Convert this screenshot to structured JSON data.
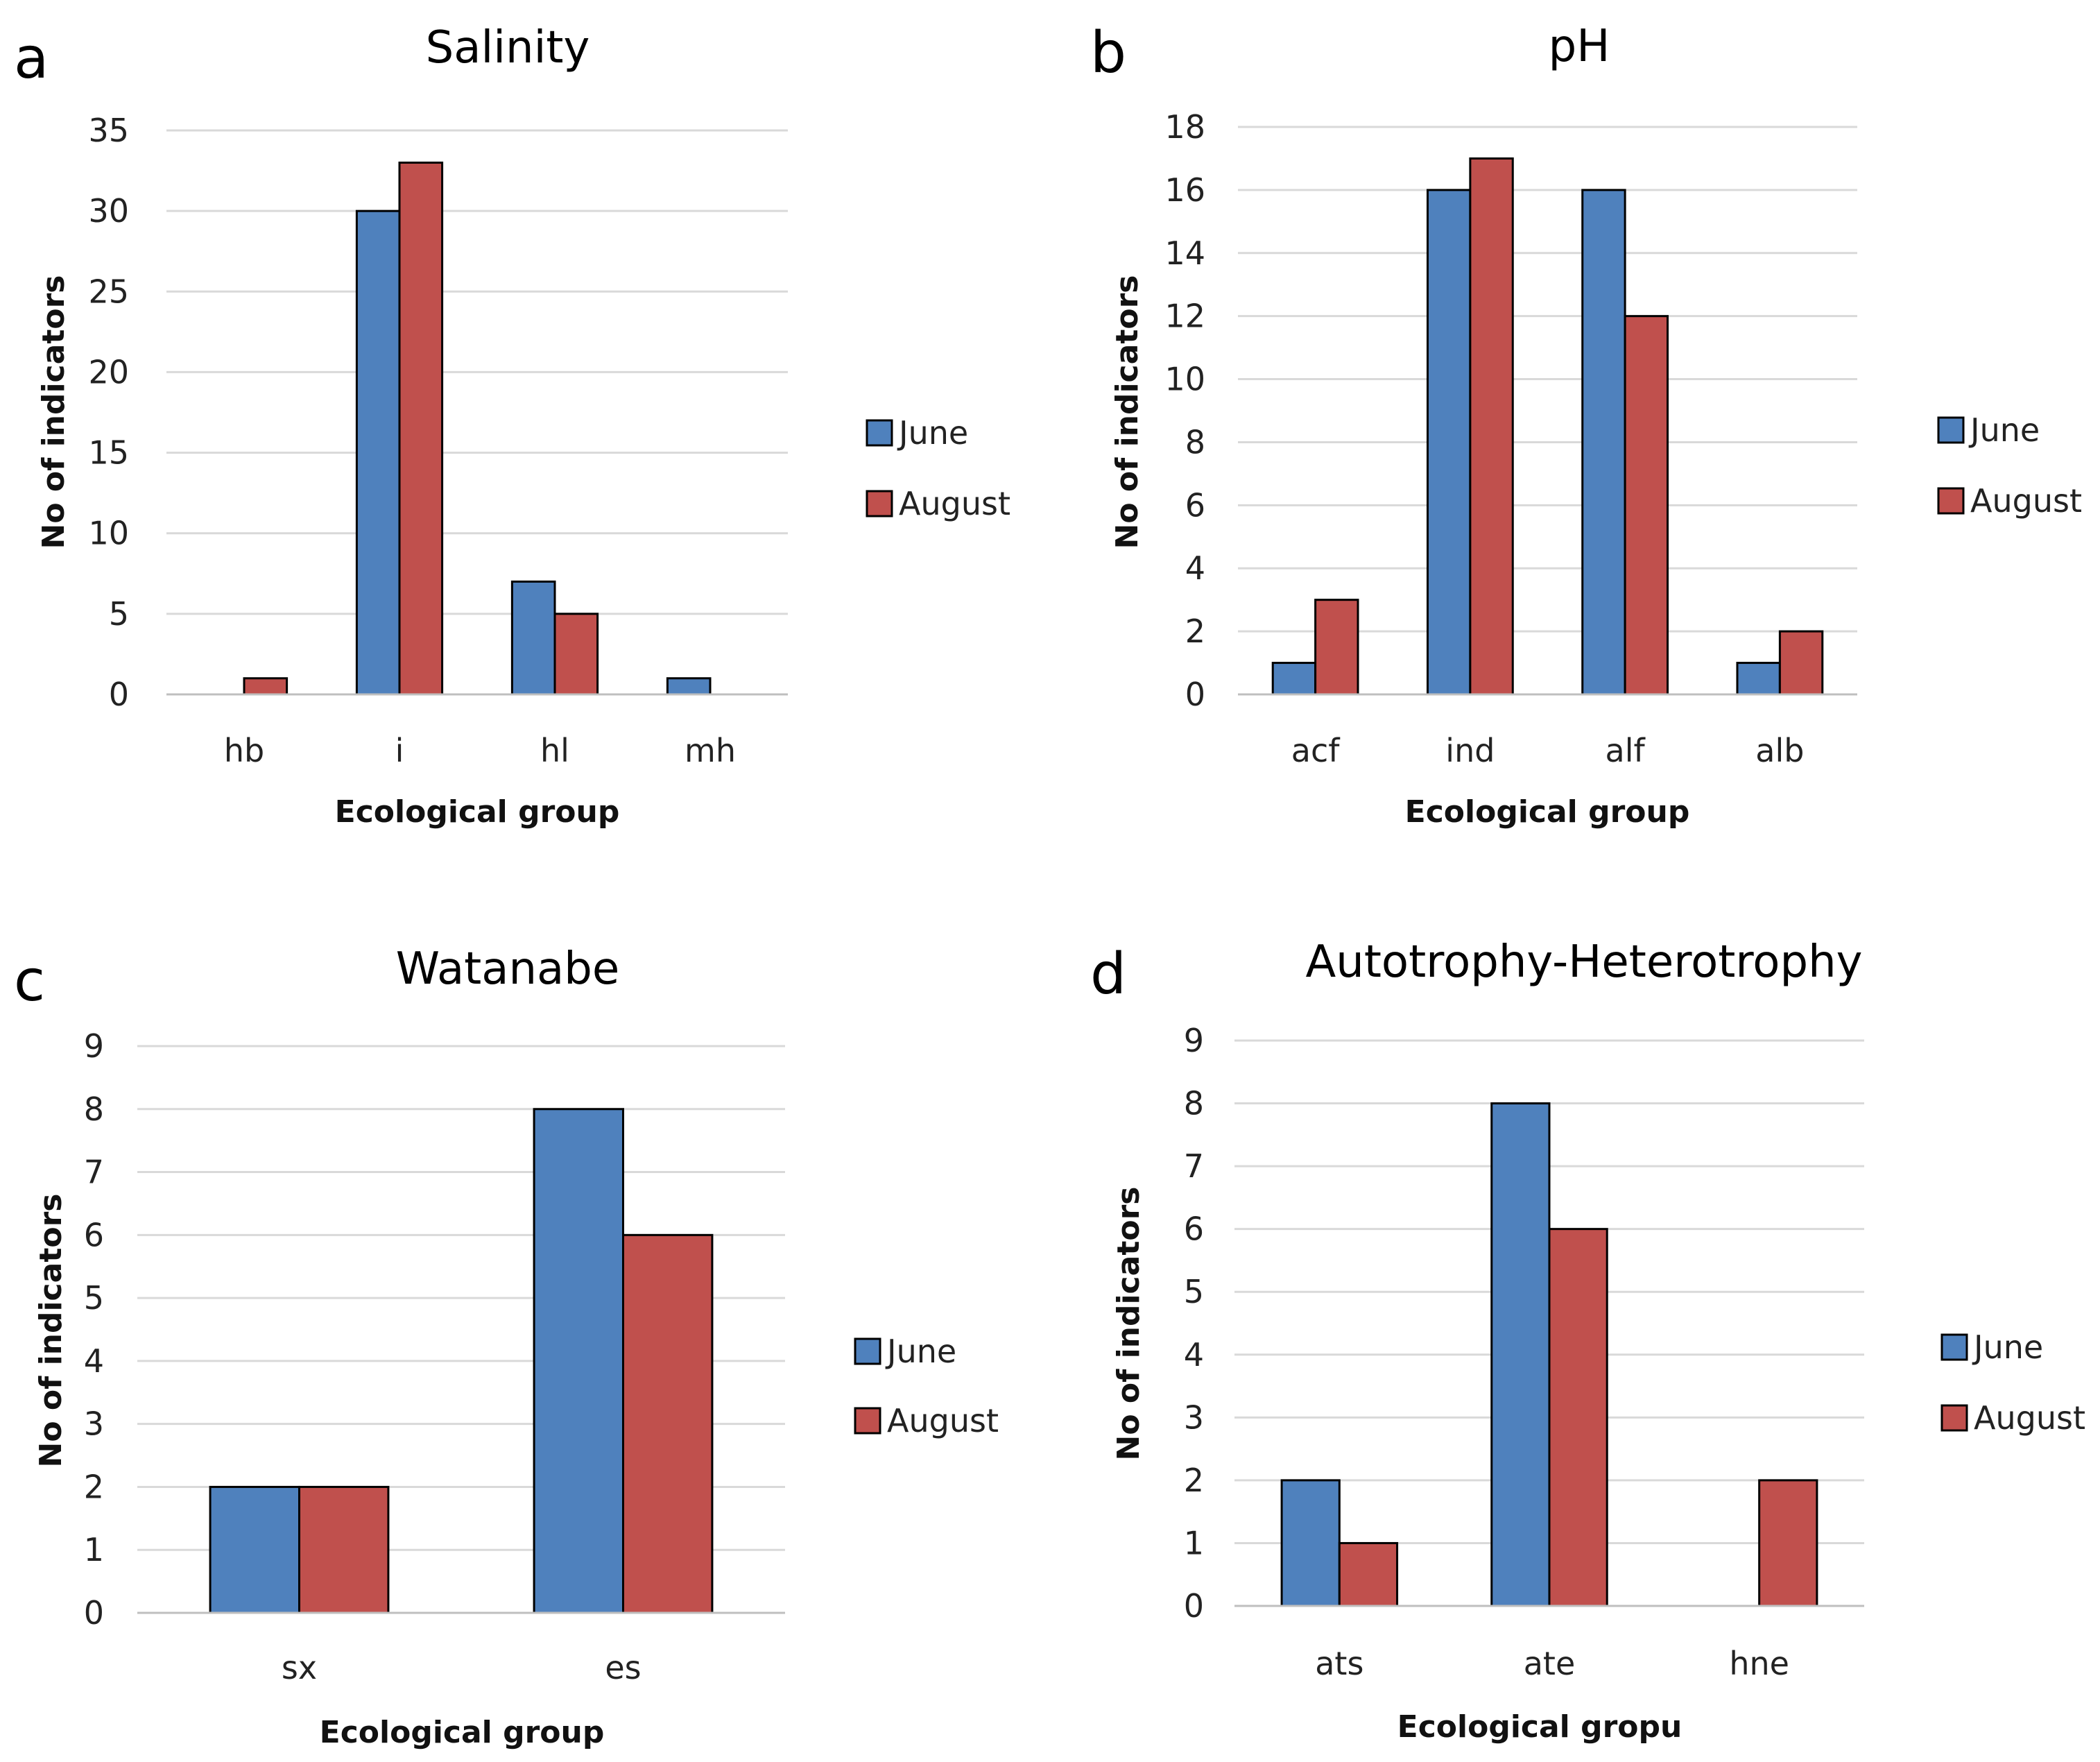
{
  "chart_data": [
    {
      "panel": "a",
      "type": "bar",
      "title": "Salinity",
      "xlabel": "Ecological group",
      "ylabel": "No of indicators",
      "ylim": [
        0,
        35
      ],
      "yticks": [
        0,
        5,
        10,
        15,
        20,
        25,
        30,
        35
      ],
      "categories": [
        "hb",
        "i",
        "hl",
        "mh"
      ],
      "series": [
        {
          "name": "June",
          "color": "#4f81bd",
          "values": [
            0,
            30,
            7,
            1
          ]
        },
        {
          "name": "August",
          "color": "#c0504d",
          "values": [
            1,
            33,
            5,
            0
          ]
        }
      ],
      "legend": "right",
      "grid": true
    },
    {
      "panel": "b",
      "type": "bar",
      "title": "pH",
      "xlabel": "Ecological group",
      "ylabel": "No of indicators",
      "ylim": [
        0,
        18
      ],
      "yticks": [
        0,
        2,
        4,
        6,
        8,
        10,
        12,
        14,
        16,
        18
      ],
      "categories": [
        "acf",
        "ind",
        "alf",
        "alb"
      ],
      "series": [
        {
          "name": "June",
          "color": "#4f81bd",
          "values": [
            1,
            16,
            16,
            1
          ]
        },
        {
          "name": "August",
          "color": "#c0504d",
          "values": [
            3,
            17,
            12,
            2
          ]
        }
      ],
      "legend": "right",
      "grid": true
    },
    {
      "panel": "c",
      "type": "bar",
      "title": "Watanabe",
      "xlabel": "Ecological group",
      "ylabel": "No of indicators",
      "ylim": [
        0,
        9
      ],
      "yticks": [
        0,
        1,
        2,
        3,
        4,
        5,
        6,
        7,
        8,
        9
      ],
      "categories": [
        "sx",
        "es"
      ],
      "series": [
        {
          "name": "June",
          "color": "#4f81bd",
          "values": [
            2,
            8
          ]
        },
        {
          "name": "August",
          "color": "#c0504d",
          "values": [
            2,
            6
          ]
        }
      ],
      "legend": "right",
      "grid": true
    },
    {
      "panel": "d",
      "type": "bar",
      "title": "Autotrophy-Heterotrophy",
      "xlabel": "Ecological gropu",
      "ylabel": "No of indicators",
      "ylim": [
        0,
        9
      ],
      "yticks": [
        0,
        1,
        2,
        3,
        4,
        5,
        6,
        7,
        8,
        9
      ],
      "categories": [
        "ats",
        "ate",
        "hne"
      ],
      "series": [
        {
          "name": "June",
          "color": "#4f81bd",
          "values": [
            2,
            8,
            0
          ]
        },
        {
          "name": "August",
          "color": "#c0504d",
          "values": [
            1,
            6,
            2
          ]
        }
      ],
      "legend": "right",
      "grid": true
    }
  ]
}
